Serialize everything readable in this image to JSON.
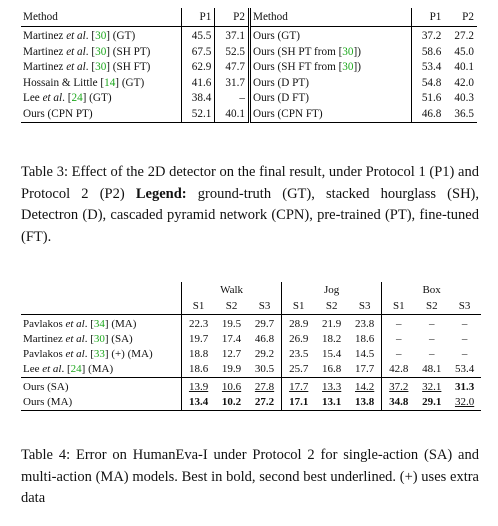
{
  "table3": {
    "headers": {
      "method": "Method",
      "p1": "P1",
      "p2": "P2"
    },
    "left_rows": [
      {
        "pre": "Martinez ",
        "etal": "et al",
        "dot": ". [",
        "cite": "30",
        "post": "] (GT)",
        "p1": "45.5",
        "p2": "37.1"
      },
      {
        "pre": "Martinez ",
        "etal": "et al",
        "dot": ". [",
        "cite": "30",
        "post": "] (SH PT)",
        "p1": "67.5",
        "p2": "52.5"
      },
      {
        "pre": "Martinez ",
        "etal": "et al",
        "dot": ". [",
        "cite": "30",
        "post": "] (SH FT)",
        "p1": "62.9",
        "p2": "47.7"
      },
      {
        "pre": "Hossain & Little [",
        "etal": "",
        "dot": "",
        "cite": "14",
        "post": "] (GT)",
        "p1": "41.6",
        "p2": "31.7"
      },
      {
        "pre": "Lee ",
        "etal": "et al",
        "dot": ". [",
        "cite": "24",
        "post": "] (GT)",
        "p1": "38.4",
        "p2": "–"
      },
      {
        "pre": "Ours (CPN PT)",
        "etal": "",
        "dot": "",
        "cite": "",
        "post": "",
        "p1": "52.1",
        "p2": "40.1"
      }
    ],
    "right_rows": [
      {
        "pre": "Ours (GT)",
        "cite": "",
        "post": "",
        "p1": "37.2",
        "p2": "27.2"
      },
      {
        "pre": "Ours (SH PT from [",
        "cite": "30",
        "post": "])",
        "p1": "58.6",
        "p2": "45.0"
      },
      {
        "pre": "Ours (SH FT from [",
        "cite": "30",
        "post": "])",
        "p1": "53.4",
        "p2": "40.1"
      },
      {
        "pre": "Ours (D PT)",
        "cite": "",
        "post": "",
        "p1": "54.8",
        "p2": "42.0"
      },
      {
        "pre": "Ours (D FT)",
        "cite": "",
        "post": "",
        "p1": "51.6",
        "p2": "40.3"
      },
      {
        "pre": "Ours (CPN FT)",
        "cite": "",
        "post": "",
        "p1": "46.8",
        "p2": "36.5"
      }
    ]
  },
  "caption3": {
    "text": "Table 3: Effect of the 2D detector on the final result, under Protocol 1 (P1) and Protocol 2 (P2) ",
    "legend_label": "Legend:",
    "legend_text": " ground-truth (GT), stacked hourglass (SH), Detectron (D), cascaded pyramid network (CPN), pre-trained (PT), fine-tuned (FT)."
  },
  "table4": {
    "groups": [
      "Walk",
      "Jog",
      "Box"
    ],
    "subheaders": [
      "S1",
      "S2",
      "S3",
      "S1",
      "S2",
      "S3",
      "S1",
      "S2",
      "S3"
    ],
    "rows": [
      {
        "pre": "Pavlakos ",
        "etal": "et al",
        "dot": ". [",
        "cite": "34",
        "post": "] (MA)",
        "values": [
          "22.3",
          "19.5",
          "29.7",
          "28.9",
          "21.9",
          "23.8",
          "–",
          "–",
          "–"
        ],
        "styles": [
          "",
          "",
          "",
          "",
          "",
          "",
          "",
          "",
          ""
        ]
      },
      {
        "pre": "Martinez ",
        "etal": "et al",
        "dot": ". [",
        "cite": "30",
        "post": "] (SA)",
        "values": [
          "19.7",
          "17.4",
          "46.8",
          "26.9",
          "18.2",
          "18.6",
          "–",
          "–",
          "–"
        ],
        "styles": [
          "",
          "",
          "",
          "",
          "",
          "",
          "",
          "",
          ""
        ]
      },
      {
        "pre": "Pavlakos ",
        "etal": "et al",
        "dot": ". [",
        "cite": "33",
        "post": "] (+) (MA)",
        "values": [
          "18.8",
          "12.7",
          "29.2",
          "23.5",
          "15.4",
          "14.5",
          "–",
          "–",
          "–"
        ],
        "styles": [
          "",
          "",
          "",
          "",
          "",
          "",
          "",
          "",
          ""
        ]
      },
      {
        "pre": "Lee ",
        "etal": "et al",
        "dot": ". [",
        "cite": "24",
        "post": "] (MA)",
        "values": [
          "18.6",
          "19.9",
          "30.5",
          "25.7",
          "16.8",
          "17.7",
          "42.8",
          "48.1",
          "53.4"
        ],
        "styles": [
          "",
          "",
          "",
          "",
          "",
          "",
          "",
          "",
          ""
        ]
      },
      {
        "pre": "Ours (SA)",
        "etal": "",
        "dot": "",
        "cite": "",
        "post": "",
        "values": [
          "13.9",
          "10.6",
          "27.8",
          "17.7",
          "13.3",
          "14.2",
          "37.2",
          "32.1",
          "31.3"
        ],
        "styles": [
          "u",
          "u",
          "u",
          "u",
          "u",
          "u",
          "u",
          "u",
          "b"
        ]
      },
      {
        "pre": "Ours (MA)",
        "etal": "",
        "dot": "",
        "cite": "",
        "post": "",
        "values": [
          "13.4",
          "10.2",
          "27.2",
          "17.1",
          "13.1",
          "13.8",
          "34.8",
          "29.1",
          "32.0"
        ],
        "styles": [
          "b",
          "b",
          "b",
          "b",
          "b",
          "b",
          "b",
          "b",
          "u"
        ]
      }
    ]
  },
  "caption4": {
    "text": "Table 4: Error on HumanEva-I under Protocol 2 for single-action (SA) and multi-action (MA) models. Best in bold, second best underlined. (+) uses extra data"
  },
  "colors": {
    "citation": "#1fa81f",
    "text": "#111111"
  }
}
